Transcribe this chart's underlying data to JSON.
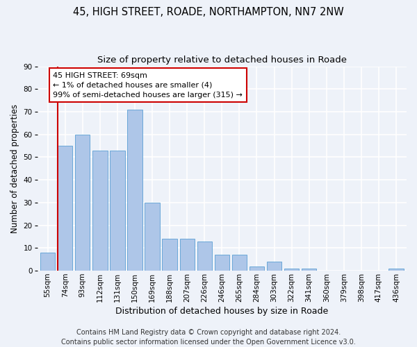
{
  "title1": "45, HIGH STREET, ROADE, NORTHAMPTON, NN7 2NW",
  "title2": "Size of property relative to detached houses in Roade",
  "xlabel": "Distribution of detached houses by size in Roade",
  "ylabel": "Number of detached properties",
  "categories": [
    "55sqm",
    "74sqm",
    "93sqm",
    "112sqm",
    "131sqm",
    "150sqm",
    "169sqm",
    "188sqm",
    "207sqm",
    "226sqm",
    "246sqm",
    "265sqm",
    "284sqm",
    "303sqm",
    "322sqm",
    "341sqm",
    "360sqm",
    "379sqm",
    "398sqm",
    "417sqm",
    "436sqm"
  ],
  "values": [
    8,
    55,
    60,
    53,
    53,
    71,
    30,
    14,
    14,
    13,
    7,
    7,
    2,
    4,
    1,
    1,
    0,
    0,
    0,
    0,
    1
  ],
  "bar_color": "#aec6e8",
  "bar_edge_color": "#5a9fd4",
  "highlight_line_color": "#cc0000",
  "annotation_line1": "45 HIGH STREET: 69sqm",
  "annotation_line2": "← 1% of detached houses are smaller (4)",
  "annotation_line3": "99% of semi-detached houses are larger (315) →",
  "annotation_box_color": "#ffffff",
  "annotation_box_edge_color": "#cc0000",
  "ylim": [
    0,
    90
  ],
  "yticks": [
    0,
    10,
    20,
    30,
    40,
    50,
    60,
    70,
    80,
    90
  ],
  "footnote": "Contains HM Land Registry data © Crown copyright and database right 2024.\nContains public sector information licensed under the Open Government Licence v3.0.",
  "background_color": "#eef2f9",
  "grid_color": "#ffffff",
  "title1_fontsize": 10.5,
  "title2_fontsize": 9.5,
  "xlabel_fontsize": 9,
  "ylabel_fontsize": 8.5,
  "tick_fontsize": 7.5,
  "annotation_fontsize": 8,
  "footnote_fontsize": 7
}
